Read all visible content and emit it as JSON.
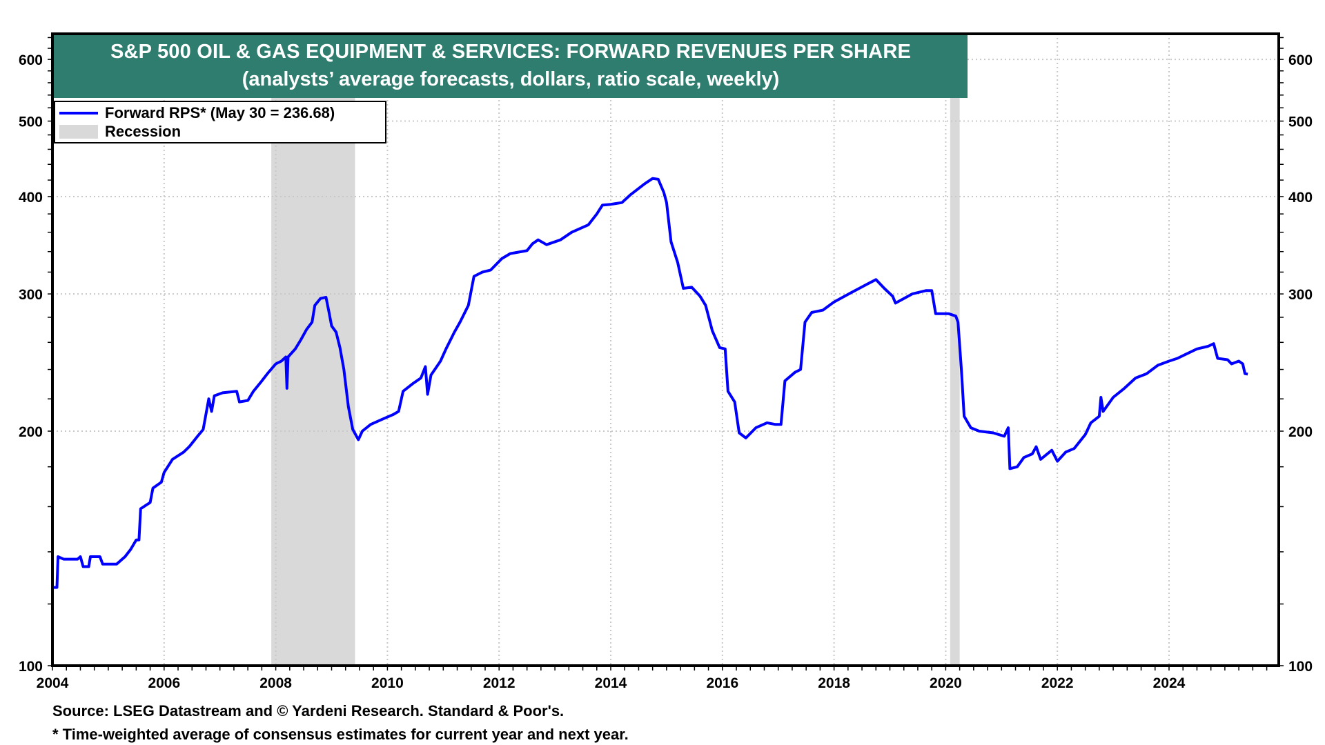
{
  "title": {
    "line1": "S&P 500  OIL & GAS EQUIPMENT & SERVICES: FORWARD REVENUES PER SHARE",
    "line2": "(analysts’ average forecasts, dollars, ratio scale, weekly)"
  },
  "legend": {
    "series_label": "Forward RPS* (May 30 = 236.68)",
    "recession_label": "Recession"
  },
  "footnotes": {
    "source": "Source: LSEG Datastream and © Yardeni Research. Standard & Poor's.",
    "note": "* Time-weighted average of consensus estimates for current year and next year."
  },
  "colors": {
    "title_bg": "#2e7d6e",
    "series": "#0000ff",
    "recession": "#d9d9d9"
  },
  "chart_data": {
    "type": "line",
    "title": "S&P 500 OIL & GAS EQUIPMENT & SERVICES: FORWARD REVENUES PER SHARE",
    "subtitle": "(analysts’ average forecasts, dollars, ratio scale, weekly)",
    "xlabel": "",
    "ylabel": "",
    "y_scale": "log",
    "ylim": [
      100,
      640
    ],
    "xlim": [
      2004,
      2026.2
    ],
    "x_ticks": [
      "2004",
      "2006",
      "2008",
      "2010",
      "2012",
      "2014",
      "2016",
      "2018",
      "2020",
      "2022",
      "2024"
    ],
    "y_ticks": [
      "100",
      "200",
      "300",
      "400",
      "500",
      "600"
    ],
    "grid": true,
    "legend_position": "top-left",
    "recessions": [
      {
        "start": 2007.92,
        "end": 2009.42
      },
      {
        "start": 2020.08,
        "end": 2020.25
      }
    ],
    "series": [
      {
        "name": "Forward RPS*",
        "latest_label": "May 30 = 236.68",
        "points": [
          [
            2004.0,
            126
          ],
          [
            2004.08,
            126
          ],
          [
            2004.1,
            138
          ],
          [
            2004.2,
            137
          ],
          [
            2004.45,
            137
          ],
          [
            2004.5,
            138
          ],
          [
            2004.55,
            134
          ],
          [
            2004.65,
            134
          ],
          [
            2004.68,
            138
          ],
          [
            2004.85,
            138
          ],
          [
            2004.9,
            135
          ],
          [
            2005.15,
            135
          ],
          [
            2005.3,
            138
          ],
          [
            2005.4,
            141
          ],
          [
            2005.5,
            145
          ],
          [
            2005.55,
            145
          ],
          [
            2005.58,
            159
          ],
          [
            2005.75,
            162
          ],
          [
            2005.8,
            169
          ],
          [
            2005.95,
            172
          ],
          [
            2006.0,
            177
          ],
          [
            2006.15,
            184
          ],
          [
            2006.35,
            188
          ],
          [
            2006.45,
            191
          ],
          [
            2006.6,
            197
          ],
          [
            2006.7,
            201
          ],
          [
            2006.8,
            220
          ],
          [
            2006.85,
            212
          ],
          [
            2006.9,
            222
          ],
          [
            2007.05,
            224
          ],
          [
            2007.3,
            225
          ],
          [
            2007.35,
            218
          ],
          [
            2007.5,
            219
          ],
          [
            2007.6,
            225
          ],
          [
            2007.75,
            232
          ],
          [
            2007.85,
            237
          ],
          [
            2008.0,
            244
          ],
          [
            2008.1,
            246
          ],
          [
            2008.18,
            249
          ],
          [
            2008.2,
            227
          ],
          [
            2008.22,
            249
          ],
          [
            2008.35,
            255
          ],
          [
            2008.45,
            262
          ],
          [
            2008.55,
            270
          ],
          [
            2008.65,
            276
          ],
          [
            2008.7,
            290
          ],
          [
            2008.8,
            296
          ],
          [
            2008.9,
            297
          ],
          [
            2008.95,
            285
          ],
          [
            2009.0,
            273
          ],
          [
            2009.08,
            268
          ],
          [
            2009.15,
            256
          ],
          [
            2009.22,
            240
          ],
          [
            2009.3,
            215
          ],
          [
            2009.38,
            201
          ],
          [
            2009.48,
            195
          ],
          [
            2009.55,
            200
          ],
          [
            2009.7,
            204
          ],
          [
            2009.9,
            207
          ],
          [
            2010.1,
            210
          ],
          [
            2010.2,
            212
          ],
          [
            2010.28,
            225
          ],
          [
            2010.45,
            230
          ],
          [
            2010.6,
            234
          ],
          [
            2010.68,
            242
          ],
          [
            2010.72,
            223
          ],
          [
            2010.78,
            236
          ],
          [
            2010.95,
            246
          ],
          [
            2011.05,
            255
          ],
          [
            2011.2,
            268
          ],
          [
            2011.3,
            276
          ],
          [
            2011.45,
            290
          ],
          [
            2011.55,
            316
          ],
          [
            2011.7,
            320
          ],
          [
            2011.85,
            322
          ],
          [
            2012.05,
            333
          ],
          [
            2012.2,
            338
          ],
          [
            2012.5,
            341
          ],
          [
            2012.6,
            348
          ],
          [
            2012.7,
            352
          ],
          [
            2012.85,
            347
          ],
          [
            2013.1,
            352
          ],
          [
            2013.3,
            360
          ],
          [
            2013.6,
            368
          ],
          [
            2013.75,
            380
          ],
          [
            2013.85,
            390
          ],
          [
            2014.0,
            391
          ],
          [
            2014.2,
            393
          ],
          [
            2014.35,
            402
          ],
          [
            2014.6,
            415
          ],
          [
            2014.75,
            422
          ],
          [
            2014.85,
            421
          ],
          [
            2014.95,
            405
          ],
          [
            2015.0,
            393
          ],
          [
            2015.08,
            350
          ],
          [
            2015.2,
            329
          ],
          [
            2015.3,
            305
          ],
          [
            2015.45,
            306
          ],
          [
            2015.6,
            298
          ],
          [
            2015.7,
            290
          ],
          [
            2015.82,
            269
          ],
          [
            2015.95,
            256
          ],
          [
            2016.05,
            255
          ],
          [
            2016.1,
            225
          ],
          [
            2016.22,
            218
          ],
          [
            2016.3,
            199
          ],
          [
            2016.42,
            196
          ],
          [
            2016.6,
            202
          ],
          [
            2016.8,
            205
          ],
          [
            2016.95,
            204
          ],
          [
            2017.05,
            204
          ],
          [
            2017.12,
            232
          ],
          [
            2017.3,
            238
          ],
          [
            2017.4,
            240
          ],
          [
            2017.48,
            276
          ],
          [
            2017.6,
            284
          ],
          [
            2017.8,
            286
          ],
          [
            2018.0,
            293
          ],
          [
            2018.3,
            301
          ],
          [
            2018.6,
            309
          ],
          [
            2018.75,
            313
          ],
          [
            2018.9,
            305
          ],
          [
            2019.05,
            298
          ],
          [
            2019.1,
            292
          ],
          [
            2019.4,
            300
          ],
          [
            2019.65,
            303
          ],
          [
            2019.75,
            303
          ],
          [
            2019.82,
            283
          ],
          [
            2020.05,
            283
          ],
          [
            2020.18,
            281
          ],
          [
            2020.22,
            276
          ],
          [
            2020.28,
            240
          ],
          [
            2020.33,
            209
          ],
          [
            2020.45,
            202
          ],
          [
            2020.6,
            200
          ],
          [
            2020.85,
            199
          ],
          [
            2021.05,
            197
          ],
          [
            2021.12,
            202
          ],
          [
            2021.15,
            179
          ],
          [
            2021.28,
            180
          ],
          [
            2021.4,
            185
          ],
          [
            2021.55,
            187
          ],
          [
            2021.62,
            191
          ],
          [
            2021.7,
            184
          ],
          [
            2021.9,
            189
          ],
          [
            2022.0,
            183
          ],
          [
            2022.15,
            188
          ],
          [
            2022.3,
            190
          ],
          [
            2022.5,
            198
          ],
          [
            2022.6,
            205
          ],
          [
            2022.75,
            209
          ],
          [
            2022.78,
            221
          ],
          [
            2022.82,
            212
          ],
          [
            2023.0,
            221
          ],
          [
            2023.2,
            227
          ],
          [
            2023.4,
            234
          ],
          [
            2023.6,
            237
          ],
          [
            2023.8,
            243
          ],
          [
            2024.0,
            246
          ],
          [
            2024.15,
            248
          ],
          [
            2024.3,
            251
          ],
          [
            2024.5,
            255
          ],
          [
            2024.7,
            257
          ],
          [
            2024.8,
            259
          ],
          [
            2024.87,
            248
          ],
          [
            2025.05,
            247
          ],
          [
            2025.12,
            244
          ],
          [
            2025.25,
            246
          ],
          [
            2025.32,
            244
          ],
          [
            2025.36,
            237
          ],
          [
            2025.41,
            236.68
          ]
        ]
      }
    ]
  }
}
